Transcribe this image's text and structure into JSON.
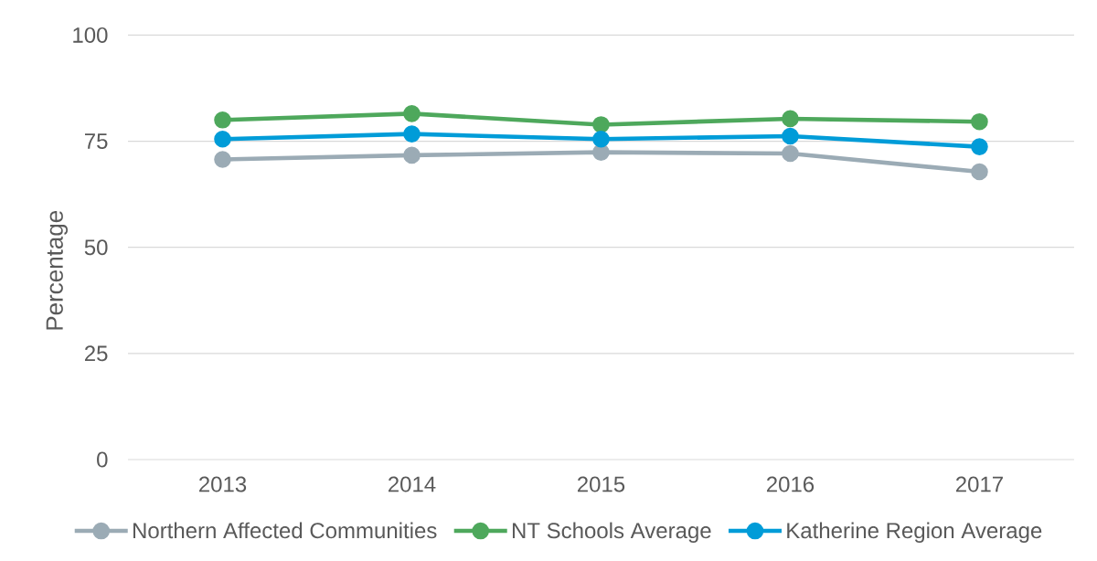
{
  "chart_data": {
    "type": "line",
    "categories": [
      "2013",
      "2014",
      "2015",
      "2016",
      "2017"
    ],
    "series": [
      {
        "name": "Northern Affected Communities",
        "color": "#9babb5",
        "values": [
          70.7,
          71.7,
          72.4,
          72.1,
          67.8
        ]
      },
      {
        "name": "NT Schools Average",
        "color": "#4ea85c",
        "values": [
          80.0,
          81.5,
          78.9,
          80.3,
          79.6
        ]
      },
      {
        "name": "Katherine Region Average",
        "color": "#009cd8",
        "values": [
          75.5,
          76.7,
          75.5,
          76.2,
          73.7
        ]
      }
    ],
    "ylabel": "Percentage",
    "ylim": [
      0,
      100
    ],
    "yticks": [
      0,
      25,
      50,
      75,
      100
    ],
    "grid": "y",
    "legend": "bottom",
    "marker": "circle",
    "line_style": "solid"
  }
}
